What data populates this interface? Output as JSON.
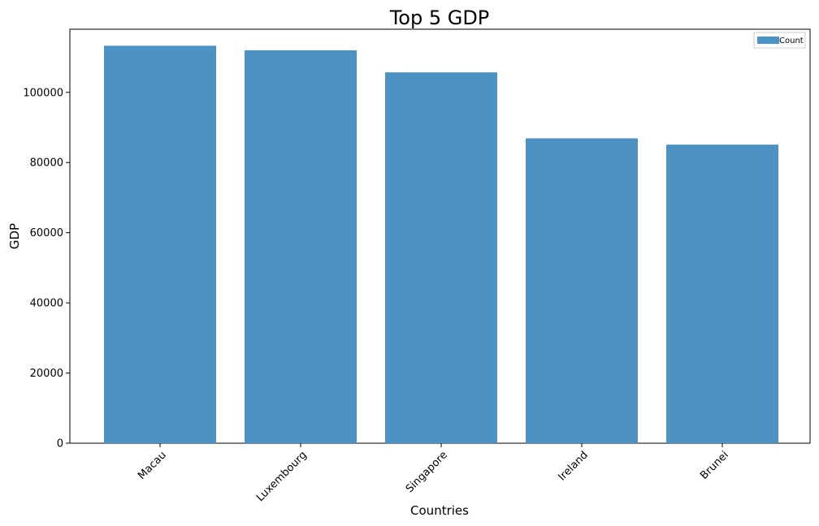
{
  "chart_data": {
    "type": "bar",
    "title": "Top 5 GDP",
    "xlabel": "Countries",
    "ylabel": "GDP",
    "categories": [
      "Macau",
      "Luxembourg",
      "Singapore",
      "Ireland",
      "Brunei"
    ],
    "series": [
      {
        "name": "Count",
        "values": [
          113300,
          112000,
          105700,
          86900,
          85100
        ],
        "color": "#4c92c3"
      }
    ],
    "ylim": [
      0,
      118000
    ],
    "yticks": [
      0,
      20000,
      40000,
      60000,
      80000,
      100000
    ],
    "xtick_rotation": 45,
    "grid": false,
    "legend": {
      "position": "top-right",
      "entries": [
        "Count"
      ]
    }
  }
}
